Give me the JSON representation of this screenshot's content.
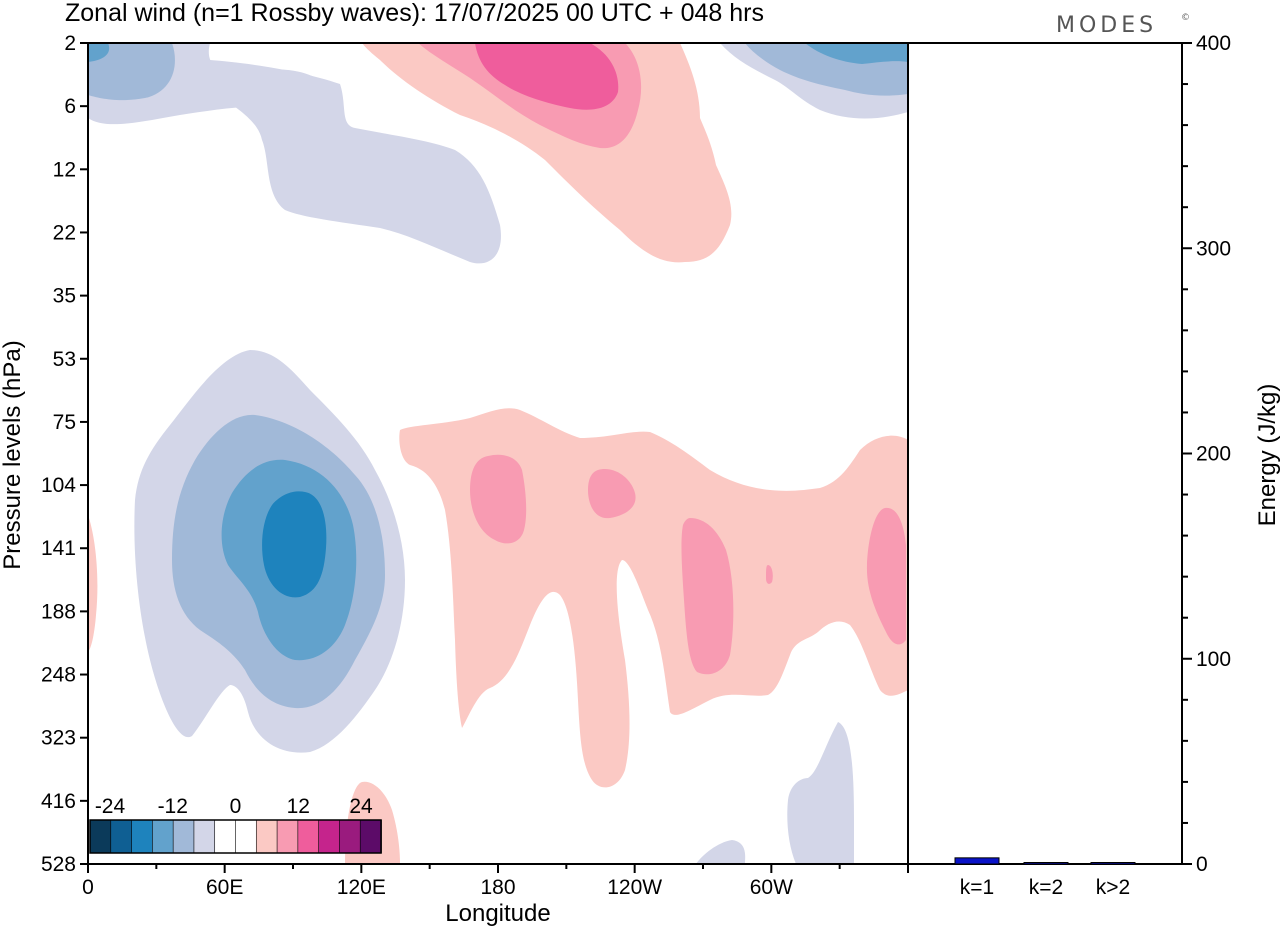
{
  "title": "Zonal wind (n=1 Rossby waves):  17/07/2025  00 UTC  + 048 hrs",
  "brand": "MODES",
  "brand_mark": "©",
  "chart_data": [
    {
      "type": "heatmap",
      "title": "Zonal wind (n=1 Rossby waves):  17/07/2025  00 UTC  + 048 hrs",
      "xlabel": "Longitude",
      "ylabel": "Pressure levels (hPa)",
      "x_ticks": [
        "0",
        "60E",
        "120E",
        "180",
        "120W",
        "60W"
      ],
      "y_ticks": [
        "2",
        "6",
        "12",
        "22",
        "35",
        "53",
        "75",
        "104",
        "141",
        "188",
        "248",
        "323",
        "416",
        "528"
      ],
      "x_range_deg": [
        0,
        360
      ],
      "y_scale": "level-index",
      "contour_levels": [
        -24,
        -20,
        -16,
        -12,
        -8,
        -4,
        0,
        4,
        8,
        12,
        16,
        20,
        24
      ],
      "colorbar": {
        "labels": [
          "-24",
          "-12",
          "0",
          "12",
          "24"
        ],
        "colors": [
          "#0b3a5a",
          "#0f5f93",
          "#1e83bd",
          "#62a2cc",
          "#a1b9d8",
          "#d3d6e8",
          "#ffffff",
          "#ffffff",
          "#fbc9c4",
          "#f89bb2",
          "#ef5d9c",
          "#c5248c",
          "#9a1b7e",
          "#5c0b68"
        ]
      },
      "features": [
        {
          "name": "negative-core",
          "lon": 90,
          "level_hpa": 141,
          "min_value": -16
        },
        {
          "name": "negative-top-left",
          "lon": 20,
          "level_hpa": 2,
          "min_value": -8
        },
        {
          "name": "negative-top-right",
          "lon": 345,
          "level_hpa": 2,
          "min_value": -12
        },
        {
          "name": "negative-lower-right",
          "lon": 320,
          "level_hpa": 416,
          "min_value": -4
        },
        {
          "name": "positive-upper",
          "lon": 200,
          "level_hpa": 6,
          "max_value": 12
        },
        {
          "name": "positive-middle-band",
          "lon": 240,
          "level_hpa": 141,
          "max_value": 8
        },
        {
          "name": "positive-bottom",
          "lon": 120,
          "level_hpa": 528,
          "max_value": 4
        }
      ]
    },
    {
      "type": "bar",
      "categories": [
        "k=1",
        "k=2",
        "k>2"
      ],
      "values": [
        3,
        0.6,
        0.5
      ],
      "ylabel": "Energy (J/kg)",
      "ylim": [
        0,
        400
      ],
      "y_ticks": [
        0,
        100,
        200,
        300,
        400
      ],
      "colors": [
        "#0a13c8",
        "#0a13c8",
        "#0a13c8"
      ]
    }
  ]
}
